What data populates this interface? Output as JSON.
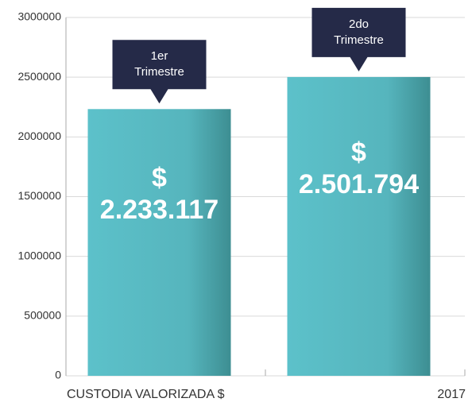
{
  "chart_data": {
    "type": "bar",
    "categories": [
      "1er\nTrimestre",
      "2do\nTrimestre"
    ],
    "values": [
      2233117,
      2501794
    ],
    "value_labels": [
      "$\n2.233.117",
      "$\n2.501.794"
    ],
    "x_label": "CUSTODIA VALORIZADA $",
    "year_label": "2017",
    "color": "#5bbfc8",
    "callout_color": "#252a48",
    "ylim": [
      0,
      3000000
    ],
    "yticks": [
      0,
      500000,
      1000000,
      1500000,
      2000000,
      2500000,
      3000000
    ],
    "grid": true
  }
}
